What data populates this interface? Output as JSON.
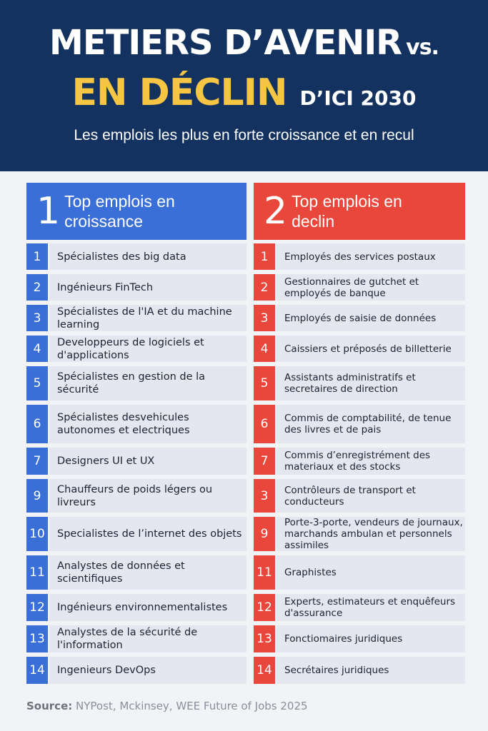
{
  "header": {
    "title_line1": "METIERS D’AVENIR",
    "title_vs": "vs.",
    "title_line2": "EN DÉCLIN",
    "title_year": "D’ICI 2030",
    "subtitle": "Les emplois les plus en forte croissance et en recul"
  },
  "columns": [
    {
      "number": "1",
      "title": "Top emplois en croissance",
      "items": [
        {
          "number": "1",
          "text": "Spécialistes des big data"
        },
        {
          "number": "2",
          "text": "Ingénieurs FinTech"
        },
        {
          "number": "3",
          "text": "Spécialistes de l'IA et du machine learning"
        },
        {
          "number": "4",
          "text": "Developpeurs de logiciels et d'applications"
        },
        {
          "number": "5",
          "text": "Spécialistes en gestion de la sécurité"
        },
        {
          "number": "6",
          "text": "Spécialistes desvehicules autonomes et electriques"
        },
        {
          "number": "7",
          "text": "Designers UI et UX"
        },
        {
          "number": "9",
          "text": "Chauffeurs de poids  légers ou livreurs"
        },
        {
          "number": "10",
          "text": "Specialistes de l’internet des objets"
        },
        {
          "number": "11",
          "text": "Analystes de données et scientifiques"
        },
        {
          "number": "12",
          "text": "Ingénieurs environnementalistes"
        },
        {
          "number": "13",
          "text": "Analystes de la sécurité de l'information"
        },
        {
          "number": "14",
          "text": "Ingenieurs DevOps"
        }
      ]
    },
    {
      "number": "2",
      "title": "Top emplois en declin",
      "items": [
        {
          "number": "1",
          "text": "Employés des services postaux"
        },
        {
          "number": "2",
          "text": "Gestionnaires de gutchet et employés de banque"
        },
        {
          "number": "3",
          "text": "Employés de saisie de données"
        },
        {
          "number": "4",
          "text": "Caissiers et préposés de billetterie"
        },
        {
          "number": "5",
          "text": "Assistants administratifs et secretaires de direction"
        },
        {
          "number": "6",
          "text": "Commis de comptabilité, de tenue des livres et de pais"
        },
        {
          "number": "7",
          "text": "Commis d’enregistrément des materiaux et des stocks"
        },
        {
          "number": "3",
          "text": "Contrôleurs de transport et conducteurs"
        },
        {
          "number": "9",
          "text": "Porte-3-porte, vendeurs de journaux, marchands ambulan et personnels assimiles"
        },
        {
          "number": "11",
          "text": "Graphistes"
        },
        {
          "number": "12",
          "text": "Experts, estimateurs et enquêfeurs d'assurance"
        },
        {
          "number": "13",
          "text": "Fonctiomaires juridiques"
        },
        {
          "number": "14",
          "text": "Secrétaires juridiques"
        }
      ]
    }
  ],
  "source": {
    "label": "Source:",
    "text": "NYPost, Mckinsey, WEE Future of Jobs 2025"
  }
}
